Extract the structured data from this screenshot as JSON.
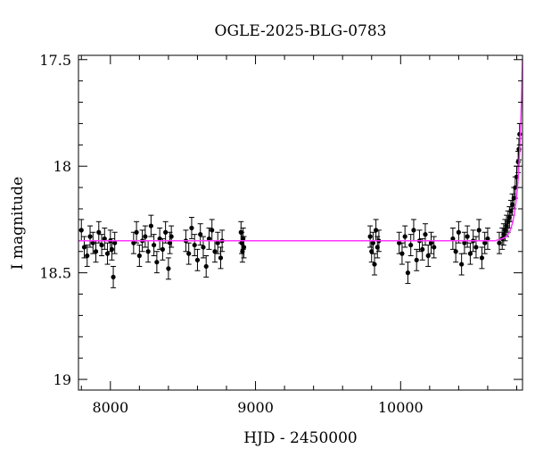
{
  "chart_data": {
    "type": "scatter",
    "title": "OGLE-2025-BLG-0783",
    "xlabel": "HJD - 2450000",
    "ylabel": "I magnitude",
    "xlim": [
      7780,
      10840
    ],
    "ylim": [
      19.05,
      17.48
    ],
    "y_inverted": true,
    "xticks": [
      8000,
      9000,
      10000
    ],
    "xtick_labels": [
      "8000",
      "9000",
      "10000"
    ],
    "yticks": [
      17.5,
      18,
      18.5,
      19
    ],
    "ytick_labels": [
      "17.5",
      "18",
      "18.5",
      "19"
    ],
    "grid": false,
    "legend": "none",
    "colors": {
      "data": "#000000",
      "model": "#ff33ff"
    },
    "series": [
      {
        "kind": "points_with_errorbars",
        "x": [
          7800,
          7820,
          7840,
          7860,
          7880,
          7900,
          7920,
          7940,
          7960,
          7980,
          8000,
          8010,
          8020,
          8030,
          8160,
          8180,
          8200,
          8220,
          8240,
          8260,
          8280,
          8300,
          8320,
          8340,
          8360,
          8380,
          8400,
          8410,
          8420,
          8520,
          8540,
          8560,
          8580,
          8600,
          8620,
          8640,
          8660,
          8680,
          8700,
          8720,
          8740,
          8760,
          8770,
          8900,
          8905,
          8910,
          8915,
          8920,
          9790,
          9800,
          9810,
          9820,
          9830,
          9840,
          9850,
          9990,
          10010,
          10030,
          10050,
          10070,
          10090,
          10110,
          10130,
          10150,
          10170,
          10190,
          10210,
          10230,
          10360,
          10380,
          10400,
          10420,
          10440,
          10460,
          10480,
          10500,
          10520,
          10540,
          10560,
          10580,
          10600,
          10680,
          10700,
          10710,
          10720,
          10730,
          10740,
          10750,
          10760,
          10770,
          10780,
          10790,
          10800,
          10810,
          10815,
          10820
        ],
        "y": [
          18.3,
          18.38,
          18.42,
          18.33,
          18.36,
          18.4,
          18.31,
          18.37,
          18.34,
          18.41,
          18.35,
          18.39,
          18.52,
          18.36,
          18.36,
          18.31,
          18.42,
          18.35,
          18.33,
          18.4,
          18.28,
          18.37,
          18.45,
          18.34,
          18.39,
          18.31,
          18.48,
          18.36,
          18.33,
          18.35,
          18.41,
          18.29,
          18.37,
          18.44,
          18.32,
          18.38,
          18.47,
          18.34,
          18.3,
          18.4,
          18.36,
          18.43,
          18.35,
          18.31,
          18.36,
          18.4,
          18.34,
          18.38,
          18.33,
          18.4,
          18.36,
          18.46,
          18.3,
          18.38,
          18.35,
          18.36,
          18.41,
          18.33,
          18.5,
          18.37,
          18.3,
          18.44,
          18.35,
          18.39,
          18.32,
          18.42,
          18.36,
          18.38,
          18.34,
          18.4,
          18.31,
          18.46,
          18.36,
          18.33,
          18.41,
          18.35,
          18.38,
          18.3,
          18.43,
          18.36,
          18.34,
          18.36,
          18.34,
          18.32,
          18.3,
          18.28,
          18.26,
          18.24,
          18.21,
          18.18,
          18.15,
          18.1,
          18.05,
          17.98,
          17.92,
          17.85
        ],
        "yerr": 0.05
      },
      {
        "kind": "model_curve",
        "x": [
          7780,
          8500,
          9000,
          9500,
          10000,
          10500,
          10650,
          10700,
          10730,
          10750,
          10770,
          10785,
          10800,
          10810,
          10820,
          10828,
          10835,
          10840
        ],
        "y": [
          18.35,
          18.35,
          18.35,
          18.35,
          18.35,
          18.35,
          18.35,
          18.34,
          18.33,
          18.31,
          18.27,
          18.22,
          18.14,
          18.06,
          17.94,
          17.8,
          17.64,
          17.5
        ]
      }
    ]
  }
}
